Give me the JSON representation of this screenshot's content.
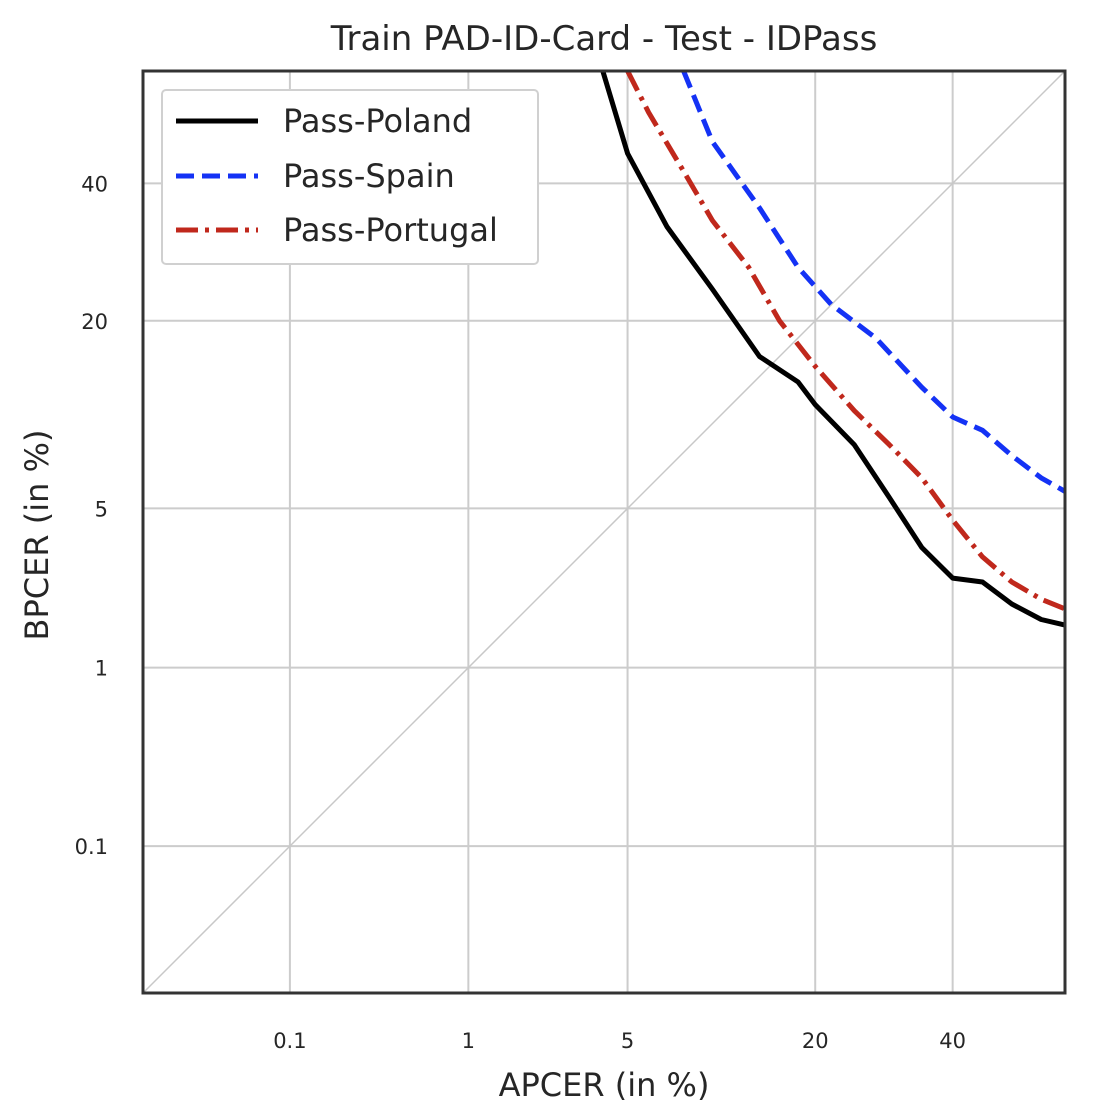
{
  "chart_data": {
    "type": "line",
    "title": "Train PAD-ID-Card - Test - IDPass",
    "xlabel": "APCER (in %)",
    "ylabel": "BPCER (in %)",
    "scale": "probit",
    "xlim": [
      0.01,
      59.0
    ],
    "ylim": [
      0.01,
      59.0
    ],
    "x_ticks": [
      0.1,
      1,
      5,
      20,
      40
    ],
    "x_tick_labels": [
      "0.1",
      "1",
      "5",
      "20",
      "40"
    ],
    "y_ticks": [
      0.1,
      1,
      5,
      20,
      40
    ],
    "y_tick_labels": [
      "0.1",
      "1",
      "5",
      "20",
      "40"
    ],
    "grid": true,
    "diagonal": true,
    "legend_position": "top-left",
    "series": [
      {
        "name": "Pass-Poland",
        "color": "#000000",
        "dash": "solid",
        "points": [
          [
            4.0,
            59
          ],
          [
            5.0,
            45
          ],
          [
            7.0,
            33
          ],
          [
            10.0,
            24
          ],
          [
            14.0,
            16
          ],
          [
            18.0,
            13.5
          ],
          [
            20.0,
            11.5
          ],
          [
            25.0,
            8.5
          ],
          [
            30.0,
            5.5
          ],
          [
            35.0,
            3.5
          ],
          [
            40.0,
            2.6
          ],
          [
            45.0,
            2.5
          ],
          [
            50.0,
            2.0
          ],
          [
            55.0,
            1.7
          ],
          [
            59.0,
            1.6
          ]
        ]
      },
      {
        "name": "Pass-Spain",
        "color": "#1432f5",
        "dash": "dashed",
        "points": [
          [
            8.0,
            59
          ],
          [
            10.0,
            47
          ],
          [
            14.0,
            36
          ],
          [
            18.0,
            27
          ],
          [
            22.0,
            22
          ],
          [
            28.0,
            18
          ],
          [
            35.0,
            13
          ],
          [
            40.0,
            10.5
          ],
          [
            45.0,
            9.5
          ],
          [
            50.0,
            7.8
          ],
          [
            55.0,
            6.5
          ],
          [
            59.0,
            5.8
          ]
        ]
      },
      {
        "name": "Pass-Portugal",
        "color": "#c0281c",
        "dash": "dashdot",
        "points": [
          [
            5.0,
            59
          ],
          [
            6.0,
            52
          ],
          [
            8.0,
            42
          ],
          [
            10.0,
            34
          ],
          [
            13.0,
            27
          ],
          [
            16.0,
            20
          ],
          [
            20.0,
            15
          ],
          [
            25.0,
            11
          ],
          [
            30.0,
            8.5
          ],
          [
            35.0,
            6.5
          ],
          [
            40.0,
            4.5
          ],
          [
            45.0,
            3.2
          ],
          [
            50.0,
            2.5
          ],
          [
            55.0,
            2.1
          ],
          [
            59.0,
            1.9
          ]
        ]
      }
    ]
  }
}
